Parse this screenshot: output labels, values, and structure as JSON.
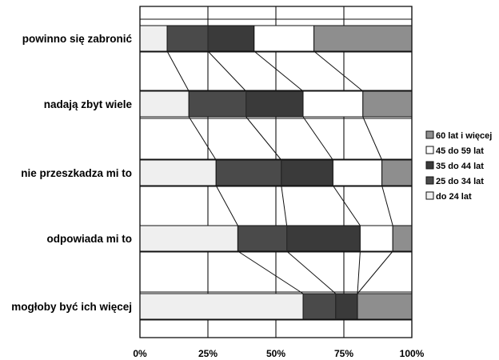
{
  "chart_data": {
    "type": "bar",
    "stacked": true,
    "orientation": "horizontal",
    "percent": true,
    "categories": [
      "powinno się zabronić",
      "nadają zbyt wiele",
      "nie przeszkadza mi to",
      "odpowiada mi to",
      "mogłoby być ich więcej"
    ],
    "series": [
      {
        "name": "do 24 lat",
        "color": "#efefef",
        "values": [
          10,
          18,
          28,
          36,
          60
        ]
      },
      {
        "name": "25 do 34 lat",
        "color": "#4a4a4a",
        "values": [
          15,
          21,
          24,
          18,
          12
        ]
      },
      {
        "name": "35 do 44 lat",
        "color": "#3a3a3a",
        "values": [
          17,
          21,
          19,
          27,
          8
        ]
      },
      {
        "name": "45 do 59 lat",
        "color": "#ffffff",
        "values": [
          22,
          22,
          18,
          12,
          0
        ]
      },
      {
        "name": "60 lat i więcej",
        "color": "#8e8e8e",
        "values": [
          36,
          18,
          11,
          7,
          20
        ]
      }
    ],
    "series_separator_color": "#2b2b2b",
    "xlim": [
      0,
      100
    ],
    "x_ticks": [
      "0%",
      "25%",
      "50%",
      "75%",
      "100%"
    ],
    "grid": true,
    "legend_position": "right",
    "legend_order": [
      "60 lat i więcej",
      "45 do 59 lat",
      "35 do 44 lat",
      "25 do 34 lat",
      "do 24 lat"
    ],
    "connector_lines": true
  }
}
